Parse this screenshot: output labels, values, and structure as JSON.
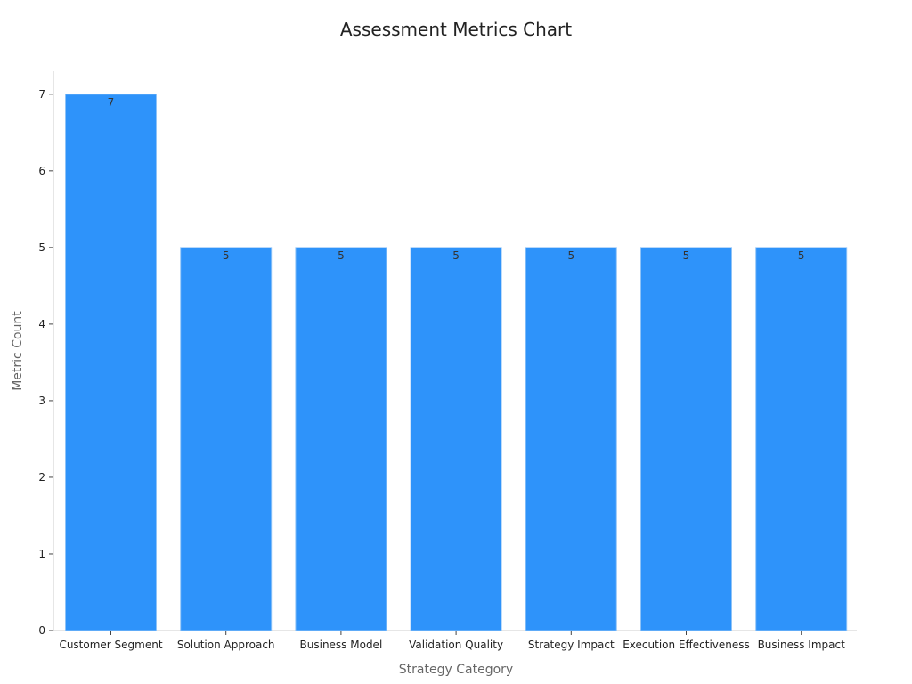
{
  "chart_data": {
    "type": "bar",
    "title": "Assessment Metrics Chart",
    "xlabel": "Strategy Category",
    "ylabel": "Metric Count",
    "categories": [
      "Customer Segment",
      "Solution Approach",
      "Business Model",
      "Validation Quality",
      "Strategy Impact",
      "Execution Effectiveness",
      "Business Impact"
    ],
    "values": [
      7,
      5,
      5,
      5,
      5,
      5,
      5
    ],
    "ylim": [
      0,
      7.3
    ],
    "yticks": [
      "0",
      "1",
      "2",
      "3",
      "4",
      "5",
      "6",
      "7"
    ],
    "grid": false,
    "colors": {
      "bar": "#2e93fa",
      "bar_edge": "#8fc3f7",
      "axis": "#cccccc",
      "tick": "#444444"
    }
  }
}
